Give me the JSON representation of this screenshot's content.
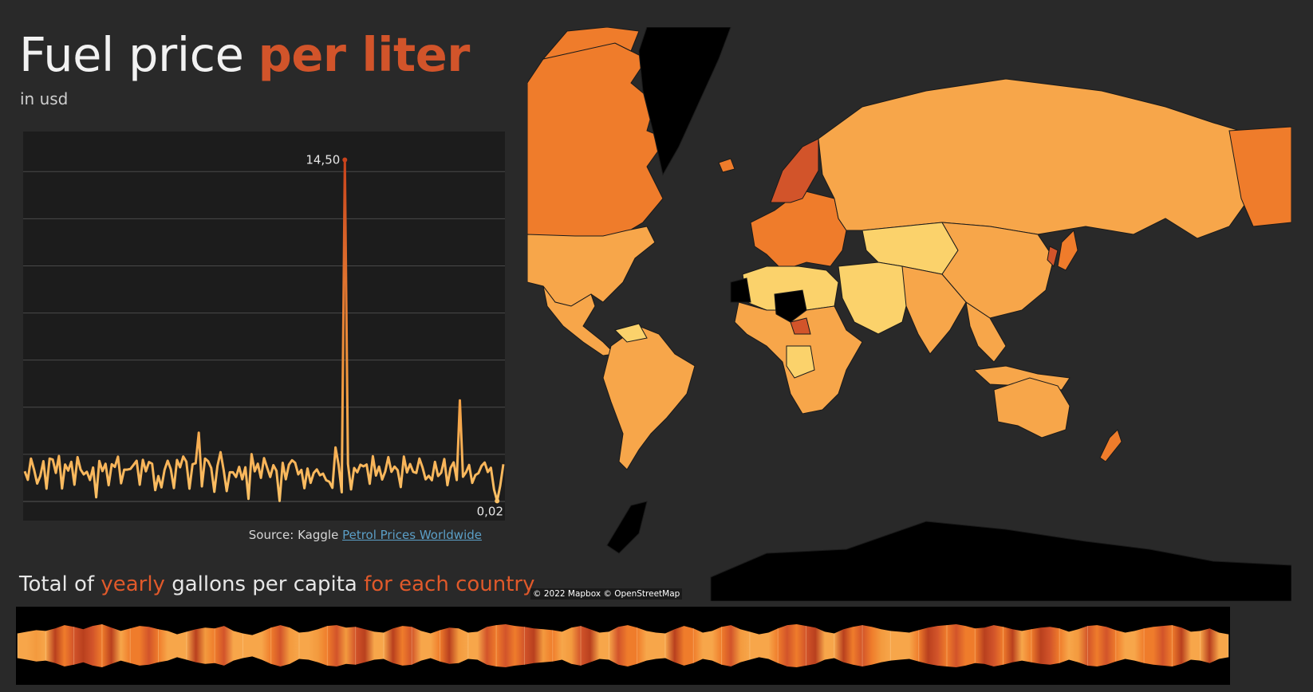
{
  "header": {
    "title_main": "Fuel price",
    "title_accent": "per liter",
    "subtitle": "in usd"
  },
  "source": {
    "prefix": "Source: Kaggle",
    "link_text": "Petrol Prices Worldwide"
  },
  "section2": {
    "title_part1": "Total of",
    "title_accent1": "yearly",
    "title_part2": "gallons per capita",
    "title_accent2": "for each country"
  },
  "map": {
    "attribution": "© 2022 Mapbox © OpenStreetMap",
    "background_color": "#292929",
    "color_scale": [
      "#fbd26b",
      "#f7a64a",
      "#ef7c2b",
      "#d2542a",
      "#b9401e"
    ],
    "no_data_color": "#000000"
  },
  "colors": {
    "accent": "#d2542a",
    "line_low": "#fbc166",
    "line_high": "#c9431c",
    "chart_bg": "#1c1c1c",
    "link": "#5b9fc7"
  },
  "chart_data": [
    {
      "type": "line",
      "title": "",
      "xlabel": "",
      "ylabel": "",
      "annotations": [
        {
          "label": "14,50",
          "value": 14.5
        },
        {
          "label": "0,02",
          "value": 0.02
        }
      ],
      "ylim": [
        0,
        15.7
      ],
      "grid": true,
      "values": [
        1.28,
        0.92,
        1.82,
        1.35,
        0.76,
        1.08,
        1.71,
        0.54,
        1.82,
        1.78,
        1.21,
        1.93,
        0.55,
        1.57,
        1.31,
        1.68,
        0.71,
        1.88,
        1.35,
        1.15,
        1.26,
        0.91,
        1.44,
        0.18,
        1.72,
        1.29,
        1.6,
        0.69,
        1.58,
        1.47,
        1.9,
        0.77,
        1.35,
        1.35,
        1.38,
        1.55,
        1.73,
        0.71,
        1.77,
        1.28,
        1.67,
        1.6,
        0.48,
        1.08,
        0.6,
        1.34,
        1.73,
        1.37,
        0.57,
        1.76,
        1.45,
        1.91,
        1.69,
        0.54,
        1.58,
        1.62,
        2.92,
        0.64,
        1.82,
        1.71,
        1.42,
        0.41,
        1.51,
        2.09,
        1.33,
        0.44,
        1.24,
        1.24,
        1.04,
        1.47,
        0.94,
        1.45,
        0.11,
        2.01,
        1.28,
        1.6,
        1.0,
        1.84,
        1.43,
        1.04,
        1.54,
        1.3,
        0.02,
        1.64,
        0.94,
        1.56,
        1.75,
        1.64,
        1.15,
        1.34,
        0.56,
        1.4,
        0.79,
        1.21,
        1.36,
        1.11,
        1.18,
        0.9,
        0.84,
        0.58,
        2.29,
        1.55,
        0.39,
        14.5,
        1.59,
        0.51,
        1.42,
        1.24,
        1.56,
        1.49,
        1.57,
        0.75,
        1.92,
        1.1,
        1.48,
        0.93,
        1.27,
        1.88,
        1.26,
        1.48,
        1.33,
        0.61,
        1.91,
        1.23,
        1.59,
        1.26,
        1.21,
        1.82,
        1.44,
        0.94,
        1.09,
        0.9,
        1.68,
        1.08,
        1.22,
        1.8,
        0.69,
        1.42,
        1.66,
        0.91,
        4.29,
        1.05,
        1.24,
        1.55,
        0.79,
        1.12,
        1.2,
        1.51,
        1.65,
        1.25,
        1.43,
        0.51,
        0.02,
        0.67,
        1.58
      ]
    },
    {
      "type": "area",
      "title": "",
      "xlabel": "",
      "ylabel": "",
      "values": [
        0.45,
        0.55,
        0.65,
        0.6,
        0.75,
        0.95,
        0.85,
        0.7,
        0.9,
        1.0,
        0.8,
        0.6,
        0.75,
        0.9,
        0.85,
        0.7,
        0.6,
        0.4,
        0.55,
        0.7,
        0.8,
        0.75,
        0.9,
        0.6,
        0.45,
        0.35,
        0.55,
        0.8,
        0.95,
        0.8,
        0.5,
        0.55,
        0.7,
        0.9,
        0.95,
        0.8,
        0.85,
        0.7,
        0.55,
        0.5,
        0.75,
        0.9,
        0.85,
        0.6,
        0.45,
        0.65,
        0.8,
        0.75,
        0.5,
        0.55,
        0.85,
        0.95,
        1.0,
        0.9,
        0.85,
        0.75,
        0.7,
        0.65,
        0.55,
        0.8,
        0.9,
        0.7,
        0.5,
        0.55,
        0.85,
        0.95,
        0.8,
        0.6,
        0.5,
        0.45,
        0.7,
        0.9,
        0.75,
        0.5,
        0.6,
        0.85,
        0.95,
        0.7,
        0.55,
        0.4,
        0.5,
        0.75,
        0.95,
        1.0,
        0.9,
        0.8,
        0.55,
        0.45,
        0.7,
        0.85,
        0.95,
        0.85,
        0.7,
        0.6,
        0.55,
        0.5,
        0.65,
        0.8,
        0.9,
        0.95,
        1.0,
        0.9,
        0.75,
        0.8,
        0.95,
        0.85,
        0.7,
        0.6,
        0.7,
        0.8,
        0.85,
        0.75,
        0.55,
        0.7,
        0.9,
        0.95,
        0.85,
        0.65,
        0.5,
        0.6,
        0.75,
        0.85,
        0.9,
        0.95,
        0.8,
        0.55,
        0.6,
        0.75,
        0.5,
        0.4
      ]
    }
  ]
}
